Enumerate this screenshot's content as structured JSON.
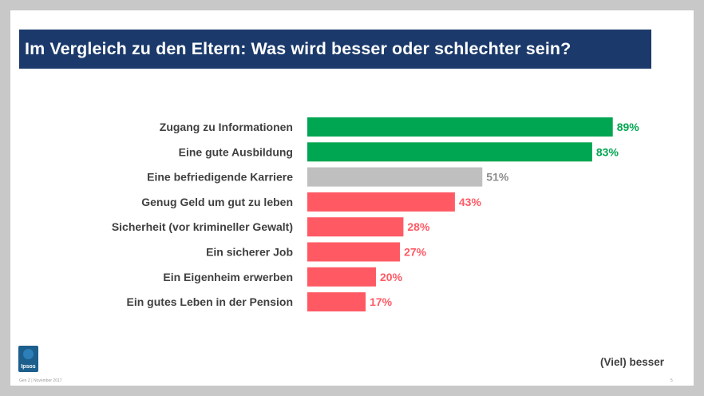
{
  "title": "Im Vergleich zu den Eltern: Was wird besser oder schlechter sein?",
  "legend_label": "(Viel) besser",
  "footer_note": "Gen Z | November 2017",
  "page_number": "5",
  "logo_text": "Ipsos",
  "colors": {
    "green": "#00a651",
    "gray": "#bfbfbf",
    "red": "#ff5a64",
    "title_bg": "#1b3a6b"
  },
  "chart_data": {
    "type": "bar",
    "orientation": "horizontal",
    "title": "Im Vergleich zu den Eltern: Was wird besser oder schlechter sein?",
    "categories": [
      "Zugang zu Informationen",
      "Eine gute Ausbildung",
      "Eine befriedigende Karriere",
      "Genug Geld um gut zu leben",
      "Sicherheit (vor krimineller Gewalt)",
      "Ein sicherer Job",
      "Ein Eigenheim erwerben",
      "Ein gutes Leben in der Pension"
    ],
    "values": [
      89,
      83,
      51,
      43,
      28,
      27,
      20,
      17
    ],
    "value_labels": [
      "89%",
      "83%",
      "51%",
      "43%",
      "28%",
      "27%",
      "20%",
      "17%"
    ],
    "bar_colors": [
      "green",
      "green",
      "gray",
      "red",
      "red",
      "red",
      "red",
      "red"
    ],
    "series": [
      {
        "name": "(Viel) besser",
        "values": [
          89,
          83,
          51,
          43,
          28,
          27,
          20,
          17
        ]
      }
    ],
    "xlim": [
      0,
      100
    ],
    "unit": "%"
  }
}
